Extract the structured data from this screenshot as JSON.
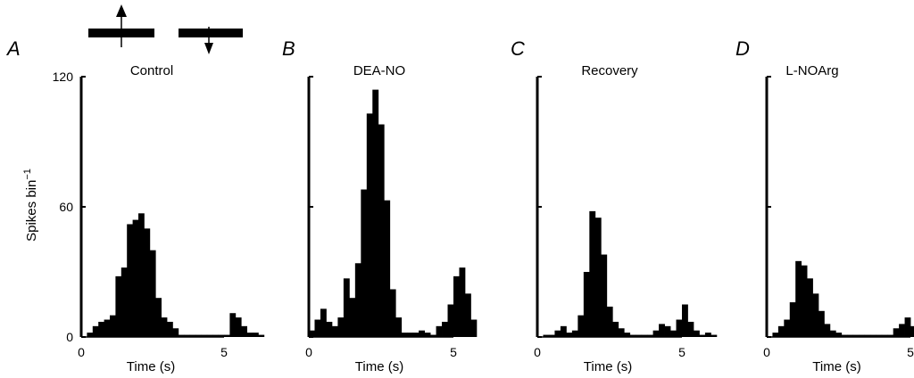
{
  "stimulus": {
    "description_icons": [
      "bar-up-arrow-icon",
      "bar-down-arrow-icon"
    ]
  },
  "ylabel": "Spikes bin",
  "ylabel_superscript": "−1",
  "chart_data": [
    {
      "type": "bar",
      "panel": "A",
      "title": "Control",
      "xlabel": "Time (s)",
      "xlim": [
        0,
        5
      ],
      "ylim": [
        0,
        120
      ],
      "xticks": [
        "0",
        "5"
      ],
      "yticks": [
        "0",
        "60",
        "120"
      ],
      "bin_width": 0.2,
      "values": [
        0,
        2,
        5,
        7,
        8,
        10,
        28,
        32,
        52,
        54,
        57,
        50,
        40,
        18,
        9,
        7,
        4,
        1,
        1,
        1,
        1,
        1,
        1,
        1,
        1,
        1,
        11,
        9,
        5,
        2,
        2,
        1,
        0,
        0,
        0
      ]
    },
    {
      "type": "bar",
      "panel": "B",
      "title": "DEA-NO",
      "xlabel": "Time (s)",
      "xlim": [
        0,
        5
      ],
      "ylim": [
        0,
        120
      ],
      "xticks": [
        "0",
        "5"
      ],
      "yticks": [],
      "bin_width": 0.2,
      "values": [
        3,
        8,
        13,
        7,
        5,
        9,
        27,
        18,
        34,
        68,
        103,
        114,
        98,
        63,
        22,
        9,
        2,
        2,
        2,
        3,
        2,
        1,
        5,
        7,
        15,
        28,
        32,
        20,
        8,
        0,
        0,
        0,
        0,
        0,
        0
      ]
    },
    {
      "type": "bar",
      "panel": "C",
      "title": "Recovery",
      "xlabel": "Time (s)",
      "xlim": [
        0,
        5
      ],
      "ylim": [
        0,
        120
      ],
      "xticks": [
        "0",
        "5"
      ],
      "yticks": [],
      "bin_width": 0.2,
      "values": [
        0,
        1,
        1,
        3,
        5,
        2,
        3,
        10,
        30,
        58,
        55,
        38,
        14,
        7,
        4,
        2,
        1,
        1,
        1,
        1,
        3,
        6,
        5,
        3,
        8,
        15,
        7,
        3,
        1,
        2,
        1,
        0,
        0,
        0,
        0
      ]
    },
    {
      "type": "bar",
      "panel": "D",
      "title": "L-NOArg",
      "xlabel": "Time (s)",
      "xlim": [
        0,
        5
      ],
      "ylim": [
        0,
        120
      ],
      "xticks": [
        "0",
        "5"
      ],
      "yticks": [],
      "bin_width": 0.2,
      "values": [
        0,
        2,
        5,
        8,
        16,
        35,
        33,
        27,
        20,
        12,
        6,
        3,
        2,
        1,
        1,
        1,
        1,
        1,
        1,
        1,
        1,
        1,
        4,
        6,
        9,
        5,
        3,
        1,
        1,
        0,
        0,
        0,
        0,
        0,
        0
      ]
    }
  ]
}
